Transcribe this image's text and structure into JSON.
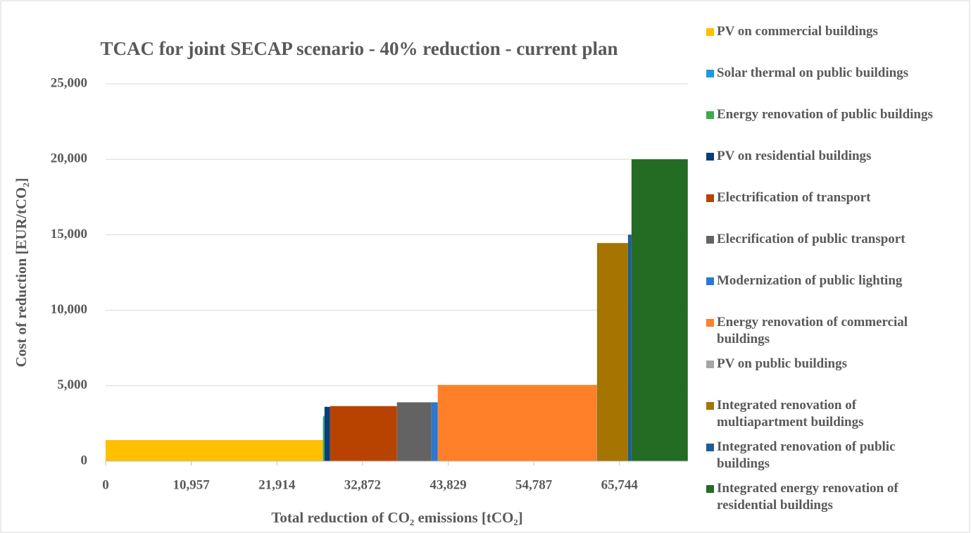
{
  "chart_data": {
    "type": "bar",
    "title": "TCAC for joint SECAP scenario - 40% reduction - current plan",
    "x_label": "Total reduction of CO₂ emissions [tCO₂]",
    "y_label": "Cost of reduction [EUR/tCO₂]",
    "xlim": [
      0,
      74500
    ],
    "xticks": [
      0,
      {
        "value": 10957,
        "label": "10,957"
      },
      {
        "value": 21914,
        "label": "21,914"
      },
      {
        "value": 32872,
        "label": "32,872"
      },
      {
        "value": 43829,
        "label": "43,829"
      },
      {
        "value": 54787,
        "label": "54,787"
      },
      {
        "value": 65744,
        "label": "65,744"
      }
    ],
    "ylim": [
      0,
      25000
    ],
    "yticks": [
      0,
      {
        "value": 5000,
        "label": "5,000"
      },
      {
        "value": 10000,
        "label": "10,000"
      },
      {
        "value": 15000,
        "label": "15,000"
      },
      {
        "value": 20000,
        "label": "20,000"
      },
      {
        "value": 25000,
        "label": "25,000"
      }
    ],
    "grid": true,
    "legend": "right",
    "series": [
      {
        "name": "PV on commercial buildings",
        "color": "#ffc000",
        "reduction": 27800,
        "value": 1400
      },
      {
        "name": "Solar thermal on public buildings",
        "color": "#1f9ad6",
        "reduction": 50,
        "value": 2900
      },
      {
        "name": "Energy renovation of public buildings",
        "color": "#3cab4a",
        "reduction": 150,
        "value": 3000
      },
      {
        "name": "PV on residential buildings",
        "color": "#0b3d78",
        "reduction": 720,
        "value": 3600
      },
      {
        "name": "Electrification of transport",
        "color": "#b84300",
        "reduction": 8550,
        "value": 3650
      },
      {
        "name": "Elecrification of public transport",
        "color": "#636363",
        "reduction": 4410,
        "value": 3900
      },
      {
        "name": "Modernization of public lighting",
        "color": "#2a78d4",
        "reduction": 810,
        "value": 3900
      },
      {
        "name": "Energy renovation of commercial buildings",
        "color": "#ff8029",
        "reduction": 20330,
        "value": 5050
      },
      {
        "name": "PV on public buildings",
        "color": "#a5a5a5",
        "reduction": 50,
        "value": 5100
      },
      {
        "name": "Integrated renovation of multiapartment buildings",
        "color": "#a67400",
        "reduction": 3960,
        "value": 14450
      },
      {
        "name": "Integrated renovation of public buildings",
        "color": "#1b5d96",
        "reduction": 450,
        "value": 15000
      },
      {
        "name": "Integrated energy renovation of residential buildings",
        "color": "#246b24",
        "reduction": 7200,
        "value": 20000
      }
    ]
  }
}
